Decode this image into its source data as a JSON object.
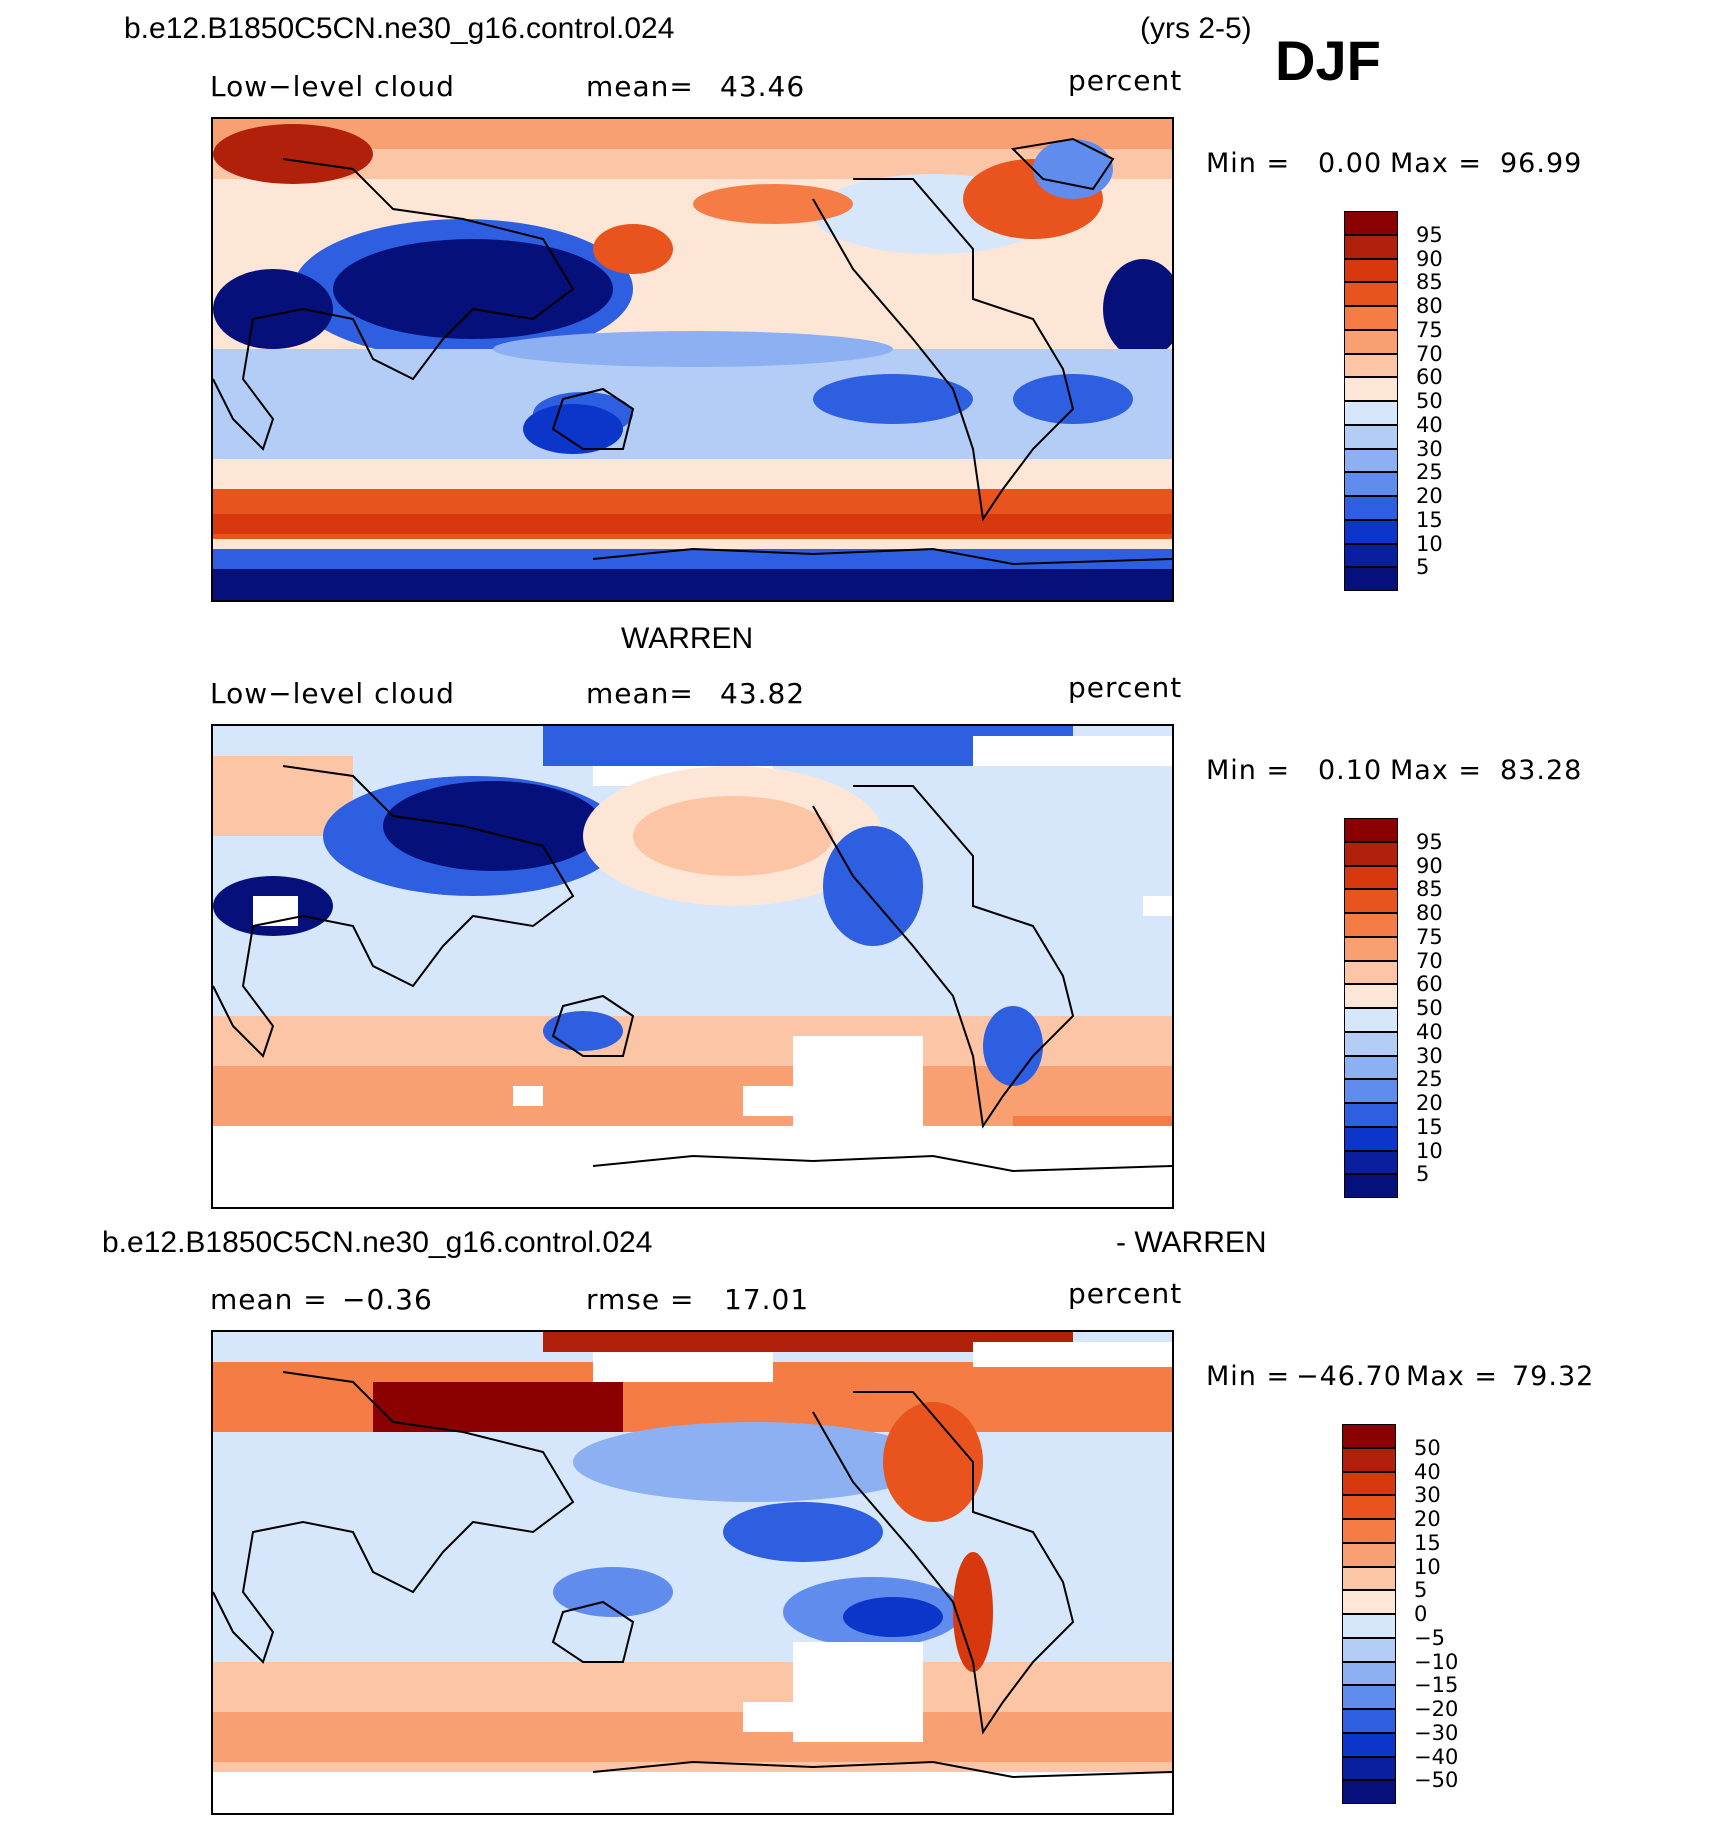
{
  "season": "DJF",
  "header": {
    "case": "b.e12.B1850C5CN.ne30_g16.control.024",
    "years": "(yrs 2-5)"
  },
  "panels": [
    {
      "id": "model",
      "variable": "Low−level cloud",
      "mean_label": "mean=",
      "mean_value": "43.46",
      "units": "percent",
      "min_label": "Min =",
      "min_value": "0.00",
      "max_label": "Max =",
      "max_value": "96.99"
    },
    {
      "id": "obs",
      "title": "WARREN",
      "variable": "Low−level cloud",
      "mean_label": "mean=",
      "mean_value": "43.82",
      "units": "percent",
      "min_label": "Min =",
      "min_value": "0.10",
      "max_label": "Max =",
      "max_value": "83.28"
    },
    {
      "id": "diff",
      "title_left": "b.e12.B1850C5CN.ne30_g16.control.024",
      "title_right": "- WARREN",
      "mean_label": "mean =",
      "mean_value": "−0.36",
      "rmse_label": "rmse =",
      "rmse_value": "17.01",
      "units": "percent",
      "min_label": "Min =",
      "min_value": "−46.70",
      "max_label": "Max =",
      "max_value": "79.32"
    }
  ],
  "colorbars": {
    "absolute": {
      "labels": [
        "95",
        "90",
        "85",
        "80",
        "75",
        "70",
        "60",
        "50",
        "40",
        "30",
        "25",
        "20",
        "15",
        "10",
        "5"
      ],
      "colors": [
        "#8b0000",
        "#b0200a",
        "#d8380e",
        "#e9531d",
        "#f57c45",
        "#f9a072",
        "#fcc6a6",
        "#fde6d6",
        "#d6e6fb",
        "#b3cdf7",
        "#8db0f2",
        "#5f8ced",
        "#2d5fe0",
        "#0b36c9",
        "#0a1f9e",
        "#06107a"
      ]
    },
    "difference": {
      "labels": [
        "50",
        "40",
        "30",
        "20",
        "15",
        "10",
        "5",
        "0",
        "−5",
        "−10",
        "−15",
        "−20",
        "−30",
        "−40",
        "−50"
      ],
      "colors": [
        "#8b0000",
        "#b0200a",
        "#d8380e",
        "#e9531d",
        "#f57c45",
        "#f9a072",
        "#fcc6a6",
        "#fde6d6",
        "#d6e6fb",
        "#b3cdf7",
        "#8db0f2",
        "#5f8ced",
        "#2d5fe0",
        "#0b36c9",
        "#0a1f9e",
        "#06107a"
      ]
    }
  }
}
